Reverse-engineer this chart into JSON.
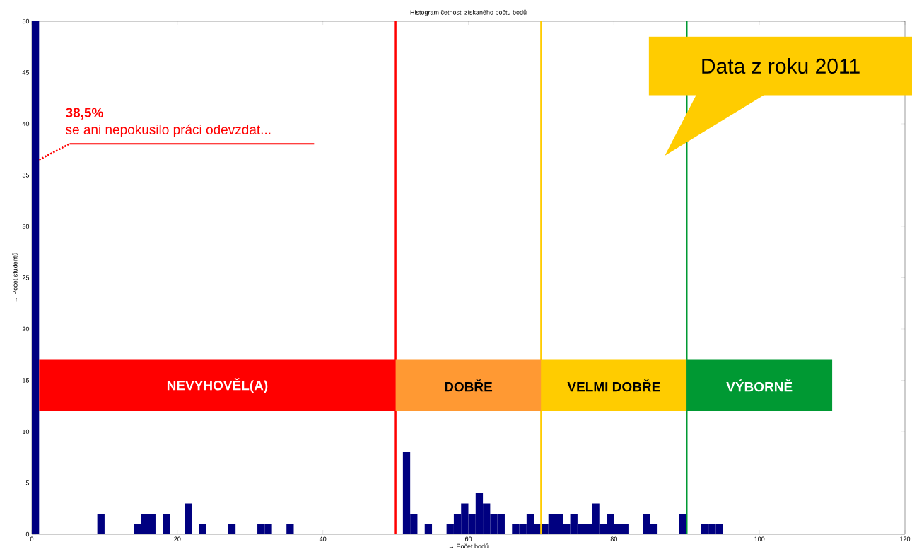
{
  "chart_data": {
    "type": "histogram",
    "title": "Histogram četnosti získaného počtu bodů",
    "xlabel": "→ Počet bodů",
    "ylabel": "→ Počet studentů",
    "bins": [
      0,
      1,
      2,
      3,
      4,
      5,
      6,
      7,
      8,
      9,
      10,
      11,
      12,
      13,
      14,
      15,
      16,
      17,
      18,
      19,
      20,
      21,
      22,
      23,
      24,
      25,
      26,
      27,
      28,
      29,
      30,
      31,
      32,
      33,
      34,
      35,
      36,
      37,
      38,
      39,
      40,
      41,
      42,
      43,
      44,
      45,
      46,
      47,
      48,
      49,
      50,
      51,
      52,
      53,
      54,
      55,
      56,
      57,
      58,
      59,
      60,
      61,
      62,
      63,
      64,
      65,
      66,
      67,
      68,
      69,
      70,
      71,
      72,
      73,
      74,
      75,
      76,
      77,
      78,
      79,
      80,
      81,
      82,
      83,
      84,
      85,
      86,
      87,
      88,
      89,
      90,
      91,
      92,
      93,
      94,
      95
    ],
    "values": [
      50,
      0,
      0,
      0,
      0,
      0,
      0,
      0,
      0,
      2,
      0,
      0,
      0,
      0,
      1,
      2,
      2,
      0,
      2,
      0,
      0,
      3,
      0,
      1,
      0,
      0,
      0,
      1,
      0,
      0,
      0,
      1,
      1,
      0,
      0,
      1,
      0,
      0,
      0,
      0,
      0,
      0,
      0,
      0,
      0,
      0,
      0,
      0,
      0,
      0,
      0,
      8,
      2,
      0,
      1,
      0,
      0,
      1,
      2,
      3,
      2,
      4,
      3,
      2,
      2,
      0,
      1,
      1,
      2,
      1,
      1,
      2,
      2,
      1,
      2,
      1,
      1,
      3,
      1,
      2,
      1,
      1,
      0,
      0,
      2,
      1,
      0,
      0,
      0,
      2,
      0,
      0,
      1,
      1,
      1
    ],
    "color": "#000080",
    "xlim": [
      0,
      120
    ],
    "xticks": [
      0,
      20,
      40,
      60,
      80,
      100,
      120
    ],
    "ylim": [
      0,
      50
    ],
    "yticks": [
      0,
      5,
      10,
      15,
      20,
      25,
      30,
      35,
      40,
      45,
      50
    ],
    "ref_lines": [
      {
        "axis": "x",
        "value": 50,
        "color": "#ff0000"
      },
      {
        "axis": "x",
        "value": 70,
        "color": "#ffcc00"
      },
      {
        "axis": "x",
        "value": 90,
        "color": "#009933"
      }
    ],
    "bands": [
      {
        "axis": "x",
        "from": 1,
        "to": 50,
        "label": "NEVYHOVĚL(A)",
        "color": "#ff0000"
      },
      {
        "axis": "x",
        "from": 50,
        "to": 70,
        "label": "DOBŘE",
        "color": "#ff9933"
      },
      {
        "axis": "x",
        "from": 70,
        "to": 90,
        "label": "VELMI DOBŘE",
        "color": "#ffcc00"
      },
      {
        "axis": "x",
        "from": 90,
        "to": 110,
        "label": "VÝBORNĚ",
        "color": "#009933"
      }
    ],
    "annotations": [
      "Data z roku 2011",
      "38,5%",
      {
        "text": "se ani nepokusilo práci odevzdat...",
        "x": 1,
        "y": 36.5
      }
    ]
  }
}
